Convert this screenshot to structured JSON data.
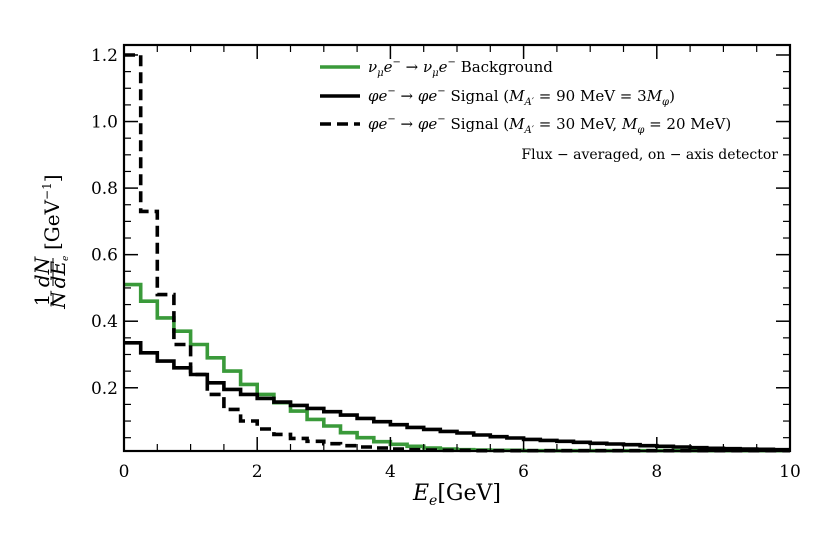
{
  "chart_data": {
    "type": "line",
    "title": "",
    "xlabel": "E_e[GeV]",
    "ylabel": "(1/N) dN/dE_e [GeV^-1]",
    "xlim": [
      0,
      10
    ],
    "ylim": [
      0.01,
      1.23
    ],
    "xticks": [
      0,
      2,
      4,
      6,
      8,
      10
    ],
    "xtick_labels": [
      "0",
      "2",
      "4",
      "6",
      "8",
      "10"
    ],
    "yticks": [
      0.2,
      0.4,
      0.6,
      0.8,
      1.0,
      1.2
    ],
    "ytick_labels": [
      "0.2",
      "0.4",
      "0.6",
      "0.8",
      "1.0",
      "1.2"
    ],
    "annotation": "Flux − averaged, on − axis detector",
    "legend_position": "top-right",
    "bin_edges": [
      0,
      0.25,
      0.5,
      0.75,
      1.0,
      1.25,
      1.5,
      1.75,
      2.0,
      2.25,
      2.5,
      2.75,
      3.0,
      3.25,
      3.5,
      3.75,
      4.0,
      4.25,
      4.5,
      4.75,
      5.0,
      5.25,
      5.5,
      5.75,
      6.0,
      6.25,
      6.5,
      6.75,
      7.0,
      7.25,
      7.5,
      7.75,
      8.0,
      8.25,
      8.5,
      8.75,
      9.0,
      9.25,
      9.5,
      9.75,
      10.0
    ],
    "series": [
      {
        "name": "ν_μ e⁻ → ν_μ e⁻ Background",
        "color": "#3a9a3a",
        "style": "solid",
        "values": [
          0.51,
          0.46,
          0.41,
          0.37,
          0.33,
          0.29,
          0.25,
          0.21,
          0.18,
          0.155,
          0.13,
          0.105,
          0.085,
          0.065,
          0.05,
          0.038,
          0.03,
          0.024,
          0.019,
          0.016,
          0.014,
          0.013,
          0.012,
          0.012,
          0.011,
          0.011,
          0.011,
          0.011,
          0.011,
          0.011,
          0.011,
          0.011,
          0.011,
          0.011,
          0.011,
          0.011,
          0.011,
          0.011,
          0.011,
          0.011
        ]
      },
      {
        "name": "φe⁻ → φe⁻ Signal (M_A′ = 90 MeV = 3M_φ)",
        "color": "#000000",
        "style": "solid",
        "values": [
          0.335,
          0.305,
          0.28,
          0.26,
          0.24,
          0.215,
          0.195,
          0.18,
          0.168,
          0.157,
          0.147,
          0.138,
          0.128,
          0.118,
          0.108,
          0.098,
          0.089,
          0.081,
          0.075,
          0.069,
          0.064,
          0.058,
          0.053,
          0.049,
          0.045,
          0.042,
          0.039,
          0.036,
          0.033,
          0.031,
          0.029,
          0.026,
          0.024,
          0.022,
          0.02,
          0.018,
          0.017,
          0.016,
          0.015,
          0.014
        ]
      },
      {
        "name": "φe⁻ → φe⁻ Signal (M_A′ = 30 MeV, M_φ = 20 MeV)",
        "color": "#000000",
        "style": "dashed",
        "values": [
          1.2,
          0.73,
          0.48,
          0.33,
          0.24,
          0.18,
          0.135,
          0.1,
          0.076,
          0.06,
          0.048,
          0.039,
          0.032,
          0.026,
          0.022,
          0.019,
          0.016,
          0.014,
          0.013,
          0.012,
          0.012,
          0.011,
          0.011,
          0.011,
          0.011,
          0.011,
          0.011,
          0.011,
          0.011,
          0.011,
          0.011,
          0.011,
          0.011,
          0.011,
          0.011,
          0.011,
          0.011,
          0.011,
          0.011,
          0.011
        ]
      }
    ]
  }
}
